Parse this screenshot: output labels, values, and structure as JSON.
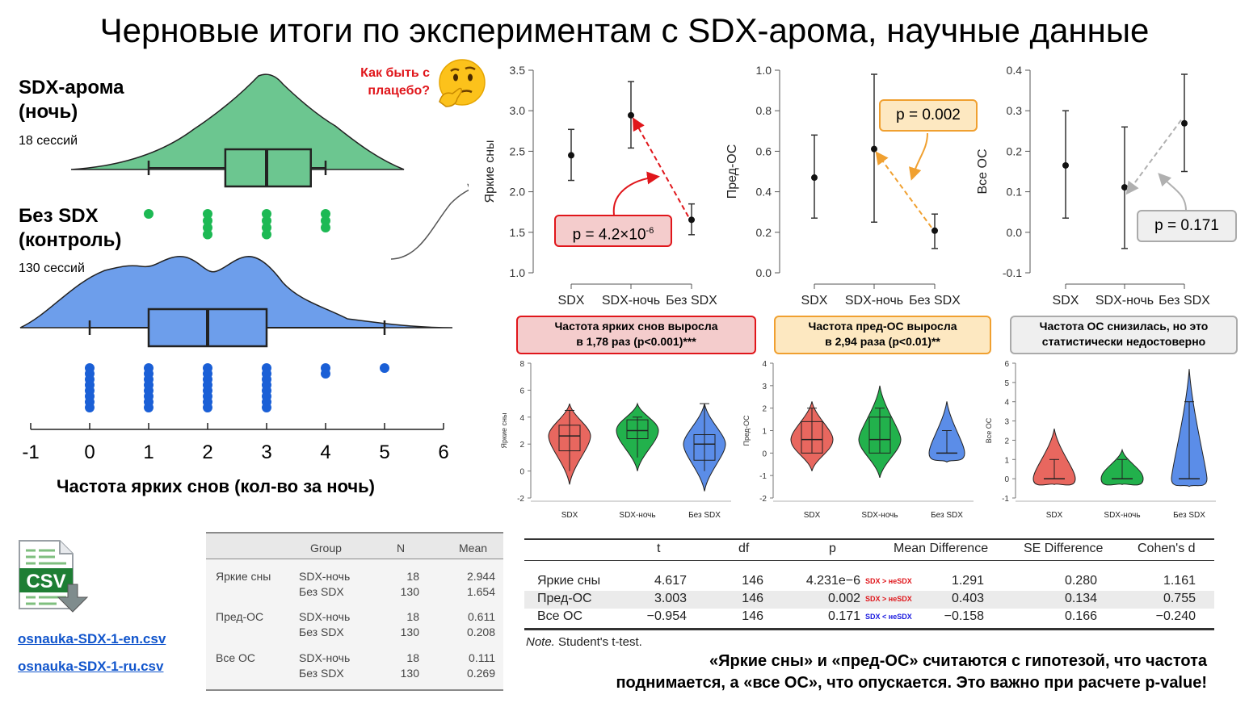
{
  "title": "Черновые итоги по экспериментам с SDX-арома, научные данные",
  "left_panel": {
    "group1_title_line1": "SDX-арома",
    "group1_title_line2": "(ночь)",
    "group1_sessions": "18 сессий",
    "group2_title_line1": "Без SDX",
    "group2_title_line2": "(контроль)",
    "group2_sessions": "130 сессий",
    "placebo_line1": "Как быть с",
    "placebo_line2": "плацебо?",
    "xlabel": "Частота ярких снов (кол-во за ночь)",
    "axis_ticks": [
      "-1",
      "0",
      "1",
      "2",
      "3",
      "4",
      "5",
      "6"
    ],
    "colors": {
      "sdx": "#6cc690",
      "control": "#6d9eeb",
      "dots_sdx": "#1db954",
      "dots_control": "#1a5fd6"
    }
  },
  "chart_data": [
    {
      "type": "raincloud",
      "name": "sdx_night",
      "box": {
        "min": 1,
        "q1": 2.3,
        "median": 3,
        "q3": 3.75,
        "max": 4
      },
      "points": [
        {
          "x": 1,
          "count": 1
        },
        {
          "x": 2,
          "count": 4
        },
        {
          "x": 3,
          "count": 4
        },
        {
          "x": 4,
          "count": 3
        }
      ],
      "xlim": [
        -1,
        6
      ]
    },
    {
      "type": "raincloud",
      "name": "control",
      "box": {
        "min": 0,
        "q1": 1,
        "median": 2,
        "q3": 3,
        "max": 5
      },
      "points": [
        {
          "x": 0,
          "count": 8
        },
        {
          "x": 1,
          "count": 8
        },
        {
          "x": 2,
          "count": 8
        },
        {
          "x": 3,
          "count": 8
        },
        {
          "x": 4,
          "count": 2
        },
        {
          "x": 5,
          "count": 1
        }
      ],
      "xlim": [
        -1,
        6
      ]
    },
    {
      "type": "errorbar",
      "ylabel": "Яркие сны",
      "categories": [
        "SDX",
        "SDX-ночь",
        "Без SDX"
      ],
      "mean": [
        2.45,
        2.944,
        1.654
      ],
      "lower": [
        2.14,
        2.54,
        1.47
      ],
      "upper": [
        2.77,
        3.36,
        1.85
      ],
      "ylim": [
        1.0,
        3.5
      ],
      "yticks": [
        "1.0",
        "1.5",
        "2.0",
        "2.5",
        "3.0",
        "3.5"
      ],
      "p_value_label": "p = 4.2×10",
      "p_exp": "-6",
      "color": "#e0161b"
    },
    {
      "type": "errorbar",
      "ylabel": "Пред-ОС",
      "categories": [
        "SDX",
        "SDX-ночь",
        "Без SDX"
      ],
      "mean": [
        0.47,
        0.611,
        0.208
      ],
      "lower": [
        0.27,
        0.25,
        0.12
      ],
      "upper": [
        0.68,
        0.98,
        0.29
      ],
      "ylim": [
        0.0,
        1.0
      ],
      "yticks": [
        "0.0",
        "0.2",
        "0.4",
        "0.6",
        "0.8",
        "1.0"
      ],
      "p_value_label": "p = 0.002",
      "color": "#f0a030"
    },
    {
      "type": "errorbar",
      "ylabel": "Все ОС",
      "categories": [
        "SDX",
        "SDX-ночь",
        "Без SDX"
      ],
      "mean": [
        0.165,
        0.111,
        0.269
      ],
      "lower": [
        0.035,
        -0.04,
        0.15
      ],
      "upper": [
        0.3,
        0.26,
        0.39
      ],
      "ylim": [
        -0.1,
        0.4
      ],
      "yticks": [
        "-0.1",
        "0.0",
        "0.1",
        "0.2",
        "0.3",
        "0.4"
      ],
      "p_value_label": "p = 0.171",
      "color": "#b0b0b0"
    },
    {
      "type": "violin",
      "ylabel": "Яркие сны",
      "categories": [
        "SDX",
        "SDX-ночь",
        "Без SDX"
      ],
      "ylim": [
        -2,
        8
      ],
      "yticks": [
        "-2",
        "0",
        "2",
        "4",
        "6",
        "8"
      ],
      "range": [
        [
          -1,
          5
        ],
        [
          0,
          5
        ],
        [
          -1.5,
          5
        ]
      ],
      "box": [
        [
          1.5,
          2.6,
          3.4
        ],
        [
          2.4,
          3.0,
          3.8
        ],
        [
          0.8,
          2.0,
          2.7
        ]
      ],
      "whisker": [
        [
          0,
          4.5
        ],
        [
          1,
          4
        ],
        [
          0,
          5
        ]
      ],
      "colors": [
        "#e8675f",
        "#22b14c",
        "#5b8de8"
      ]
    },
    {
      "type": "violin",
      "ylabel": "Пред-ОС",
      "categories": [
        "SDX",
        "SDX-ночь",
        "Без SDX"
      ],
      "ylim": [
        -2,
        4
      ],
      "yticks": [
        "-2",
        "-1",
        "0",
        "1",
        "2",
        "3",
        "4"
      ],
      "range": [
        [
          -0.8,
          2.3
        ],
        [
          -1.1,
          3.0
        ],
        [
          -0.4,
          2.3
        ]
      ],
      "box": [
        [
          0,
          0.6,
          1.4
        ],
        [
          0,
          0.6,
          1.6
        ],
        [
          0,
          0,
          0
        ]
      ],
      "whisker": [
        [
          0,
          2
        ],
        [
          0,
          2
        ],
        [
          0,
          1
        ]
      ],
      "colors": [
        "#e8675f",
        "#22b14c",
        "#5b8de8"
      ]
    },
    {
      "type": "violin",
      "ylabel": "Все ОС",
      "categories": [
        "SDX",
        "SDX-ночь",
        "Без SDX"
      ],
      "ylim": [
        -1,
        6
      ],
      "yticks": [
        "-1",
        "0",
        "1",
        "2",
        "3",
        "4",
        "5",
        "6"
      ],
      "range": [
        [
          -0.3,
          2.6
        ],
        [
          -0.3,
          1.5
        ],
        [
          -0.4,
          5.7
        ]
      ],
      "box": [
        [
          0,
          0,
          0
        ],
        [
          0,
          0,
          0
        ],
        [
          0,
          0,
          0
        ]
      ],
      "whisker": [
        [
          0,
          1
        ],
        [
          0,
          1
        ],
        [
          0,
          4
        ]
      ],
      "colors": [
        "#e8675f",
        "#22b14c",
        "#5b8de8"
      ]
    }
  ],
  "captions": {
    "vivid_line1": "Частота ярких снов выросла",
    "vivid_line2": "в 1,78 раз (p<0.001)***",
    "preos_line1": "Частота пред-ОС выросла",
    "preos_line2": "в 2,94 раза (p<0.01)**",
    "allos_line1": "Частота ОС снизилась, но это",
    "allos_line2": "статистически недостоверно"
  },
  "files": {
    "csv_icon_text": "CSV",
    "link_en": "osnauka-SDX-1-en.csv",
    "link_ru": "osnauka-SDX-1-ru.csv"
  },
  "desc_table": {
    "headers": [
      "Group",
      "N",
      "Mean"
    ],
    "rows": [
      [
        "Яркие сны",
        "SDX-ночь",
        "18",
        "2.944"
      ],
      [
        "",
        "Без SDX",
        "130",
        "1.654"
      ],
      [
        "Пред-ОС",
        "SDX-ночь",
        "18",
        "0.611"
      ],
      [
        "",
        "Без SDX",
        "130",
        "0.208"
      ],
      [
        "Все ОС",
        "SDX-ночь",
        "18",
        "0.111"
      ],
      [
        "",
        "Без SDX",
        "130",
        "0.269"
      ]
    ]
  },
  "ttest_table": {
    "headers": [
      "t",
      "df",
      "p",
      "Mean Difference",
      "SE Difference",
      "Cohen's d"
    ],
    "rows": [
      [
        "Яркие сны",
        "4.617",
        "146",
        "4.231e−6",
        "SDX > неSDX",
        "1.291",
        "0.280",
        "1.161"
      ],
      [
        "Пред-ОС",
        "3.003",
        "146",
        "0.002",
        "SDX > неSDX",
        "0.403",
        "0.134",
        "0.755"
      ],
      [
        "Все ОС",
        "−0.954",
        "146",
        "0.171",
        "SDX < неSDX",
        "−0.158",
        "0.166",
        "−0.240"
      ]
    ],
    "tag_colors": [
      "#e0161b",
      "#e0161b",
      "#1a1adf"
    ],
    "note_italic": "Note.",
    "note_text": "Student's t-test."
  },
  "bottom_note_line1": "«Яркие сны» и «пред-ОС» считаются с гипотезой, что частота",
  "bottom_note_line2": "поднимается, а «все ОС», что опускается. Это важно при расчете p-value!"
}
